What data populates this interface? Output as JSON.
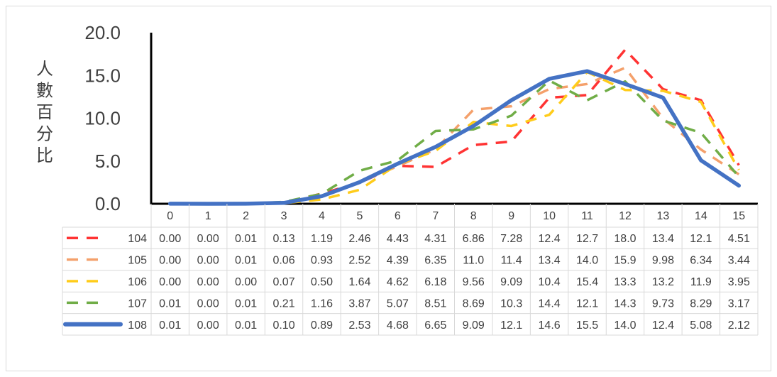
{
  "chart_data": {
    "type": "line",
    "title": "",
    "xlabel": "",
    "ylabel": "人數百分比",
    "ylim": [
      0,
      20
    ],
    "yticks": [
      "0.0",
      "5.0",
      "10.0",
      "15.0",
      "20.0"
    ],
    "categories": [
      "0",
      "1",
      "2",
      "3",
      "4",
      "5",
      "6",
      "7",
      "8",
      "9",
      "10",
      "11",
      "12",
      "13",
      "14",
      "15"
    ],
    "legend": "data-table",
    "series": [
      {
        "name": "104",
        "color": "#ff3333",
        "dash": "dashed",
        "values": [
          0.0,
          0.0,
          0.01,
          0.13,
          1.19,
          2.46,
          4.43,
          4.31,
          6.86,
          7.28,
          12.4,
          12.7,
          18.0,
          13.4,
          12.1,
          4.51
        ],
        "labels": [
          "0.00",
          "0.00",
          "0.01",
          "0.13",
          "1.19",
          "2.46",
          "4.43",
          "4.31",
          "6.86",
          "7.28",
          "12.4",
          "12.7",
          "18.0",
          "13.4",
          "12.1",
          "4.51"
        ]
      },
      {
        "name": "105",
        "color": "#f4a06b",
        "dash": "dashed",
        "values": [
          0.0,
          0.0,
          0.01,
          0.06,
          0.93,
          2.52,
          4.39,
          6.35,
          11.0,
          11.4,
          13.4,
          14.0,
          15.9,
          9.98,
          6.34,
          3.44
        ],
        "labels": [
          "0.00",
          "0.00",
          "0.01",
          "0.06",
          "0.93",
          "2.52",
          "4.39",
          "6.35",
          "11.0",
          "11.4",
          "13.4",
          "14.0",
          "15.9",
          "9.98",
          "6.34",
          "3.44"
        ]
      },
      {
        "name": "106",
        "color": "#ffcc1a",
        "dash": "dashed",
        "values": [
          0.0,
          0.0,
          0.0,
          0.07,
          0.5,
          1.64,
          4.62,
          6.18,
          9.56,
          9.09,
          10.4,
          15.4,
          13.3,
          13.2,
          11.9,
          3.95
        ],
        "labels": [
          "0.00",
          "0.00",
          "0.00",
          "0.07",
          "0.50",
          "1.64",
          "4.62",
          "6.18",
          "9.56",
          "9.09",
          "10.4",
          "15.4",
          "13.3",
          "13.2",
          "11.9",
          "3.95"
        ]
      },
      {
        "name": "107",
        "color": "#70ad47",
        "dash": "dashed",
        "values": [
          0.01,
          0.0,
          0.01,
          0.21,
          1.16,
          3.87,
          5.07,
          8.51,
          8.69,
          10.3,
          14.4,
          12.1,
          14.3,
          9.73,
          8.29,
          3.17
        ],
        "labels": [
          "0.01",
          "0.00",
          "0.01",
          "0.21",
          "1.16",
          "3.87",
          "5.07",
          "8.51",
          "8.69",
          "10.3",
          "14.4",
          "12.1",
          "14.3",
          "9.73",
          "8.29",
          "3.17"
        ]
      },
      {
        "name": "108",
        "color": "#4472c4",
        "dash": "solid",
        "values": [
          0.01,
          0.0,
          0.01,
          0.1,
          0.89,
          2.53,
          4.68,
          6.65,
          9.09,
          12.1,
          14.6,
          15.5,
          14.0,
          12.4,
          5.08,
          2.12
        ],
        "labels": [
          "0.01",
          "0.00",
          "0.01",
          "0.10",
          "0.89",
          "2.53",
          "4.68",
          "6.65",
          "9.09",
          "12.1",
          "14.6",
          "15.5",
          "14.0",
          "12.4",
          "5.08",
          "2.12"
        ]
      }
    ]
  }
}
